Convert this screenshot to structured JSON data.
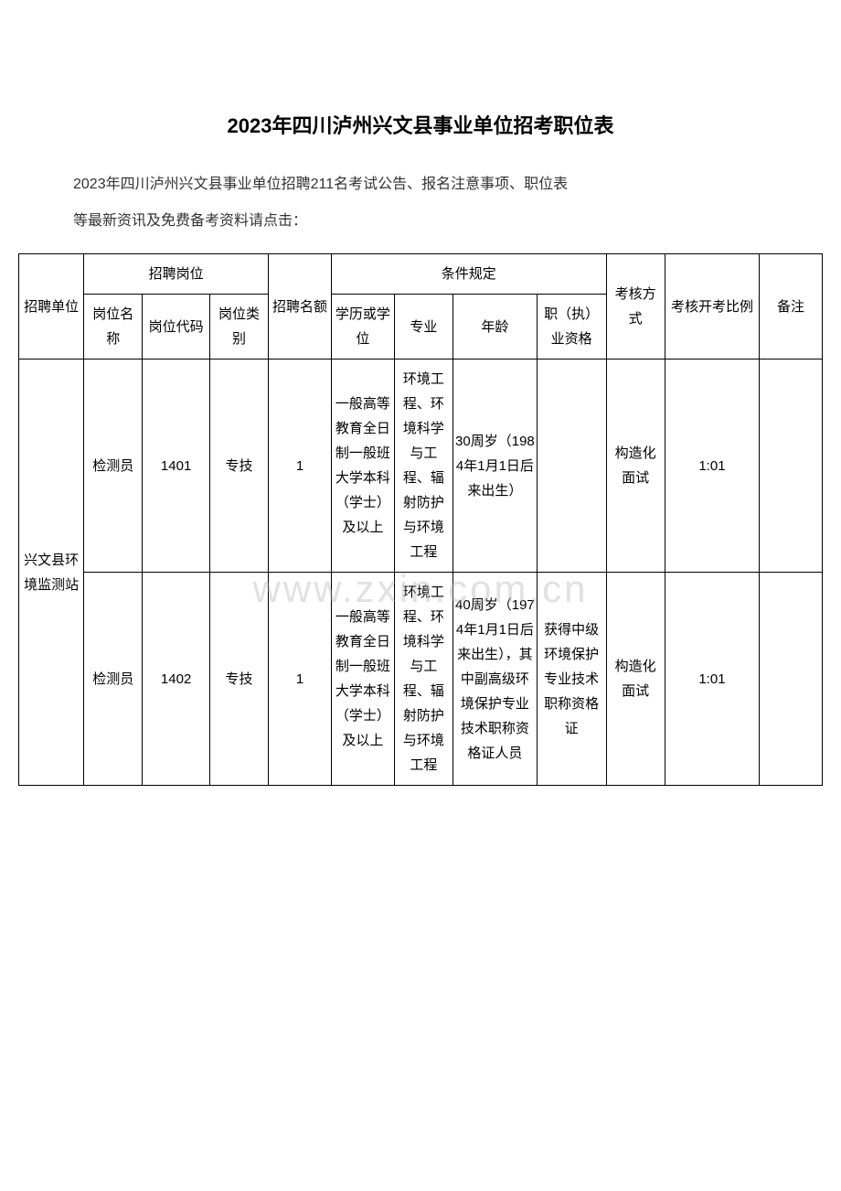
{
  "title": "2023年四川泸州兴文县事业单位招考职位表",
  "subtitle1": "2023年四川泸州兴文县事业单位招聘211名考试公告、报名注意事项、职位表",
  "subtitle2": "等最新资讯及免费备考资料请点击：",
  "watermark": "www.zxin.com.cn",
  "headers": {
    "unit": "招聘单位",
    "position_group": "招聘岗位",
    "pos_name": "岗位名称",
    "pos_code": "岗位代码",
    "pos_type": "岗位类别",
    "quota": "招聘名额",
    "conditions_group": "条件规定",
    "education": "学历或学位",
    "major": "专业",
    "age": "年龄",
    "qualification": "职（执）业资格",
    "method": "考核方式",
    "ratio": "考核开考比例",
    "note": "备注"
  },
  "rows": [
    {
      "unit": "兴文县环境监测站",
      "unit_rowspan": 2,
      "pos_name": "检测员",
      "pos_code": "1401",
      "pos_type": "专技",
      "quota": "1",
      "education": "一般高等教育全日制一般班大学本科（学士）及以上",
      "major": "环境工程、环境科学与工程、辐射防护与环境工程",
      "age": "30周岁（1984年1月1日后来出生）",
      "qualification": "",
      "method": "构造化面试",
      "ratio": "1:01",
      "note": ""
    },
    {
      "pos_name": "检测员",
      "pos_code": "1402",
      "pos_type": "专技",
      "quota": "1",
      "education": "一般高等教育全日制一般班大学本科（学士）及以上",
      "major": "环境工程、环境科学与工程、辐射防护与环境工程",
      "age": "40周岁（1974年1月1日后来出生），其中副高级环境保护专业技术职称资格证人员",
      "qualification": "获得中级环境保护专业技术职称资格证",
      "method": "构造化面试",
      "ratio": "1:01",
      "note": ""
    }
  ]
}
